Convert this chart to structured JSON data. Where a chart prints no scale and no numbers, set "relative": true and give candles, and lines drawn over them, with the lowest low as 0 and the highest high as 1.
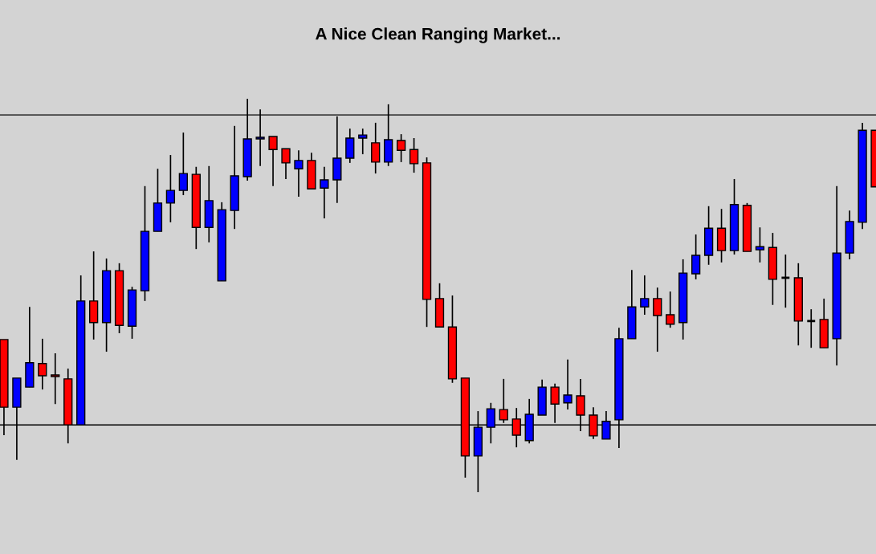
{
  "chart_data": {
    "type": "candlestick",
    "title": "A Nice Clean Ranging Market...",
    "relative": true,
    "categories": [
      null,
      null,
      null,
      null,
      null,
      null,
      null,
      null,
      null,
      null,
      null,
      null,
      null,
      null,
      null,
      null,
      null,
      null,
      null,
      null,
      null,
      null,
      null,
      null,
      null,
      null,
      null,
      null,
      null,
      null,
      null,
      null,
      null,
      null,
      null,
      null,
      null,
      null,
      null,
      null,
      null,
      null,
      null,
      null,
      null,
      null,
      null,
      null,
      null,
      null,
      null,
      null,
      null,
      null,
      null,
      null,
      null,
      null,
      null,
      null,
      null,
      null,
      null,
      null,
      null,
      null,
      null,
      null,
      null
    ],
    "ohlc": [
      [
        0.388,
        0.388,
        0.145,
        0.216
      ],
      [
        0.216,
        0.29,
        0.082,
        0.29
      ],
      [
        0.267,
        0.471,
        0.267,
        0.329
      ],
      [
        0.327,
        0.39,
        0.261,
        0.296
      ],
      [
        0.298,
        0.353,
        0.224,
        0.294
      ],
      [
        0.288,
        0.314,
        0.124,
        0.171
      ],
      [
        0.171,
        0.551,
        0.171,
        0.486
      ],
      [
        0.486,
        0.612,
        0.388,
        0.431
      ],
      [
        0.431,
        0.594,
        0.357,
        0.563
      ],
      [
        0.563,
        0.582,
        0.404,
        0.424
      ],
      [
        0.422,
        0.522,
        0.39,
        0.514
      ],
      [
        0.512,
        0.778,
        0.486,
        0.663
      ],
      [
        0.663,
        0.822,
        0.663,
        0.735
      ],
      [
        0.735,
        0.857,
        0.686,
        0.767
      ],
      [
        0.767,
        0.914,
        0.755,
        0.81
      ],
      [
        0.808,
        0.827,
        0.618,
        0.673
      ],
      [
        0.673,
        0.829,
        0.635,
        0.741
      ],
      [
        0.537,
        0.737,
        0.537,
        0.718
      ],
      [
        0.716,
        0.931,
        0.669,
        0.804
      ],
      [
        0.802,
        1.0,
        0.792,
        0.898
      ],
      [
        0.898,
        0.973,
        0.829,
        0.902
      ],
      [
        0.904,
        0.904,
        0.778,
        0.871
      ],
      [
        0.873,
        0.873,
        0.796,
        0.837
      ],
      [
        0.822,
        0.869,
        0.751,
        0.843
      ],
      [
        0.843,
        0.863,
        0.771,
        0.771
      ],
      [
        0.773,
        0.827,
        0.696,
        0.794
      ],
      [
        0.794,
        0.955,
        0.735,
        0.849
      ],
      [
        0.849,
        0.924,
        0.837,
        0.9
      ],
      [
        0.9,
        0.924,
        0.859,
        0.908
      ],
      [
        0.888,
        0.939,
        0.81,
        0.839
      ],
      [
        0.839,
        0.986,
        0.829,
        0.896
      ],
      [
        0.894,
        0.91,
        0.839,
        0.869
      ],
      [
        0.871,
        0.9,
        0.812,
        0.835
      ],
      [
        0.837,
        0.851,
        0.42,
        0.49
      ],
      [
        0.492,
        0.531,
        0.42,
        0.42
      ],
      [
        0.42,
        0.5,
        0.278,
        0.288
      ],
      [
        0.29,
        0.29,
        0.037,
        0.092
      ],
      [
        0.092,
        0.206,
        0.0,
        0.165
      ],
      [
        0.165,
        0.227,
        0.124,
        0.212
      ],
      [
        0.21,
        0.288,
        0.176,
        0.184
      ],
      [
        0.186,
        0.214,
        0.114,
        0.145
      ],
      [
        0.131,
        0.237,
        0.124,
        0.198
      ],
      [
        0.196,
        0.286,
        0.196,
        0.267
      ],
      [
        0.267,
        0.276,
        0.176,
        0.224
      ],
      [
        0.227,
        0.337,
        0.21,
        0.247
      ],
      [
        0.245,
        0.288,
        0.155,
        0.196
      ],
      [
        0.196,
        0.216,
        0.135,
        0.143
      ],
      [
        0.135,
        0.206,
        0.135,
        0.18
      ],
      [
        0.184,
        0.418,
        0.112,
        0.39
      ],
      [
        0.39,
        0.565,
        0.39,
        0.471
      ],
      [
        0.471,
        0.551,
        0.451,
        0.492
      ],
      [
        0.492,
        0.52,
        0.357,
        0.449
      ],
      [
        0.451,
        0.51,
        0.418,
        0.427
      ],
      [
        0.431,
        0.592,
        0.388,
        0.557
      ],
      [
        0.555,
        0.655,
        0.541,
        0.602
      ],
      [
        0.602,
        0.727,
        0.578,
        0.671
      ],
      [
        0.671,
        0.72,
        0.584,
        0.614
      ],
      [
        0.614,
        0.796,
        0.604,
        0.731
      ],
      [
        0.729,
        0.735,
        0.612,
        0.612
      ],
      [
        0.616,
        0.673,
        0.584,
        0.624
      ],
      [
        0.622,
        0.659,
        0.476,
        0.541
      ],
      [
        0.545,
        0.604,
        0.469,
        0.545
      ],
      [
        0.545,
        0.582,
        0.373,
        0.435
      ],
      [
        0.435,
        0.465,
        0.367,
        0.435
      ],
      [
        0.439,
        0.492,
        0.367,
        0.367
      ],
      [
        0.39,
        0.778,
        0.322,
        0.608
      ],
      [
        0.608,
        0.716,
        0.592,
        0.688
      ],
      [
        0.686,
        0.939,
        0.669,
        0.92
      ],
      [
        0.92,
        0.92,
        0.776,
        0.776
      ]
    ],
    "colors": [
      "#ff0000",
      "#0000ff",
      "#0000ff",
      "#ff0000",
      "#ff0000",
      "#ff0000",
      "#0000ff",
      "#ff0000",
      "#0000ff",
      "#ff0000",
      "#0000ff",
      "#0000ff",
      "#0000ff",
      "#0000ff",
      "#0000ff",
      "#ff0000",
      "#0000ff",
      "#0000ff",
      "#0000ff",
      "#0000ff",
      "#0000ff",
      "#ff0000",
      "#ff0000",
      "#0000ff",
      "#ff0000",
      "#0000ff",
      "#0000ff",
      "#0000ff",
      "#0000ff",
      "#ff0000",
      "#0000ff",
      "#ff0000",
      "#ff0000",
      "#ff0000",
      "#ff0000",
      "#ff0000",
      "#ff0000",
      "#0000ff",
      "#0000ff",
      "#ff0000",
      "#ff0000",
      "#0000ff",
      "#0000ff",
      "#ff0000",
      "#0000ff",
      "#ff0000",
      "#ff0000",
      "#0000ff",
      "#0000ff",
      "#0000ff",
      "#0000ff",
      "#ff0000",
      "#ff0000",
      "#0000ff",
      "#0000ff",
      "#0000ff",
      "#ff0000",
      "#0000ff",
      "#ff0000",
      "#0000ff",
      "#ff0000",
      "#000000",
      "#ff0000",
      "#000000",
      "#ff0000",
      "#0000ff",
      "#0000ff",
      "#0000ff",
      "#ff0000"
    ],
    "ref_lines": [
      {
        "axis": "y",
        "value": 0.959,
        "color": "#000000"
      },
      {
        "axis": "y",
        "value": 0.171,
        "color": "#000000"
      }
    ]
  }
}
